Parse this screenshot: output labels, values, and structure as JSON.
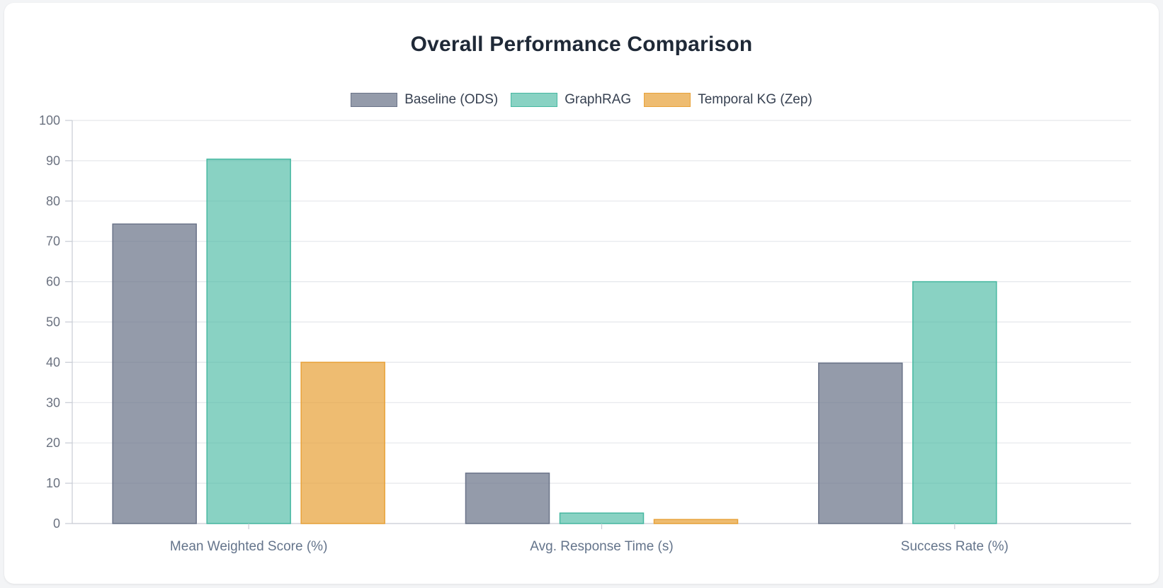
{
  "chart_data": {
    "type": "bar",
    "title": "Overall Performance Comparison",
    "categories": [
      "Mean Weighted Score (%)",
      "Avg. Response Time (s)",
      "Success Rate (%)"
    ],
    "series": [
      {
        "name": "Baseline (ODS)",
        "values": [
          74.3,
          12.5,
          39.8
        ],
        "color": "#6b7489",
        "fill": "rgba(107,116,137,0.72)"
      },
      {
        "name": "GraphRAG",
        "values": [
          90.4,
          2.6,
          60.0
        ],
        "color": "#47b8a1",
        "fill": "rgba(71,184,161,0.64)"
      },
      {
        "name": "Temporal KG (Zep)",
        "values": [
          40.0,
          1.0,
          0.0
        ],
        "color": "#e8a23a",
        "fill": "rgba(232,162,58,0.72)"
      }
    ],
    "ylim": [
      0,
      100
    ],
    "yticks": [
      0,
      10,
      20,
      30,
      40,
      50,
      60,
      70,
      80,
      90,
      100
    ],
    "grid": true,
    "legend_position": "top"
  }
}
